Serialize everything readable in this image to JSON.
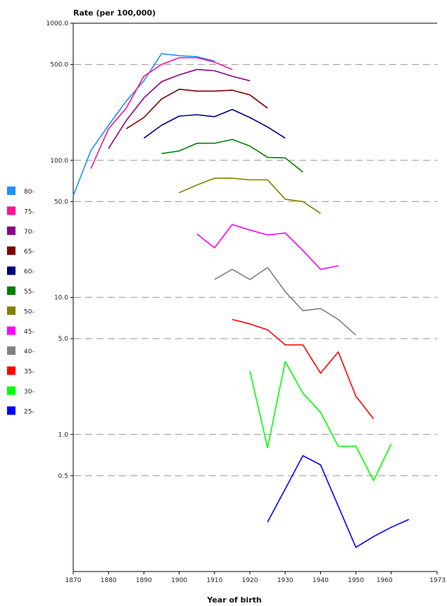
{
  "chart_data": {
    "type": "line",
    "ylabel": "Rate (per 100,000)",
    "xlabel": "Year of birth",
    "y_scale": "log",
    "ylim": [
      0.1,
      1000
    ],
    "xlim": [
      1870,
      1973
    ],
    "grid": "horizontal dashed",
    "legend_position": "left",
    "y_ticks": [
      {
        "value": 1000,
        "label": "1000.0"
      },
      {
        "value": 500,
        "label": "500.0"
      },
      {
        "value": 100,
        "label": "100.0"
      },
      {
        "value": 50,
        "label": "50.0"
      },
      {
        "value": 10,
        "label": "10.0"
      },
      {
        "value": 5,
        "label": "5.0"
      },
      {
        "value": 1,
        "label": "1.0"
      },
      {
        "value": 0.5,
        "label": "0.5"
      }
    ],
    "dashed_grid_values": [
      500,
      100,
      50,
      10,
      5,
      1,
      0.5
    ],
    "x_ticks": [
      {
        "value": 1870,
        "label": "1870"
      },
      {
        "value": 1880,
        "label": "1880"
      },
      {
        "value": 1890,
        "label": "1890"
      },
      {
        "value": 1900,
        "label": "1900"
      },
      {
        "value": 1910,
        "label": "1910"
      },
      {
        "value": 1920,
        "label": "1920"
      },
      {
        "value": 1930,
        "label": "1930"
      },
      {
        "value": 1940,
        "label": "1940"
      },
      {
        "value": 1950,
        "label": "1950"
      },
      {
        "value": 1960,
        "label": "1960"
      },
      {
        "value": 1973,
        "label": "1973"
      }
    ],
    "series": [
      {
        "name": "80-",
        "color": "#1e90ff",
        "points": [
          [
            1870,
            55
          ],
          [
            1875,
            118
          ],
          [
            1880,
            180
          ],
          [
            1885,
            270
          ],
          [
            1890,
            380
          ],
          [
            1895,
            600
          ],
          [
            1900,
            580
          ],
          [
            1905,
            570
          ],
          [
            1910,
            530
          ]
        ]
      },
      {
        "name": "75-",
        "color": "#ff1493",
        "points": [
          [
            1875,
            87
          ],
          [
            1880,
            170
          ],
          [
            1885,
            240
          ],
          [
            1890,
            410
          ],
          [
            1895,
            500
          ],
          [
            1900,
            560
          ],
          [
            1905,
            560
          ],
          [
            1910,
            520
          ],
          [
            1915,
            460
          ]
        ]
      },
      {
        "name": "70-",
        "color": "#8b008b",
        "points": [
          [
            1880,
            122
          ],
          [
            1885,
            195
          ],
          [
            1890,
            285
          ],
          [
            1895,
            375
          ],
          [
            1900,
            420
          ],
          [
            1905,
            460
          ],
          [
            1910,
            450
          ],
          [
            1915,
            410
          ],
          [
            1920,
            380
          ]
        ]
      },
      {
        "name": "65-",
        "color": "#800000",
        "points": [
          [
            1885,
            170
          ],
          [
            1890,
            205
          ],
          [
            1895,
            280
          ],
          [
            1900,
            330
          ],
          [
            1905,
            320
          ],
          [
            1910,
            320
          ],
          [
            1915,
            325
          ],
          [
            1920,
            300
          ],
          [
            1925,
            240
          ]
        ]
      },
      {
        "name": "60-",
        "color": "#000080",
        "points": [
          [
            1890,
            145
          ],
          [
            1895,
            180
          ],
          [
            1900,
            210
          ],
          [
            1905,
            215
          ],
          [
            1910,
            208
          ],
          [
            1915,
            235
          ],
          [
            1920,
            205
          ],
          [
            1925,
            175
          ],
          [
            1930,
            145
          ]
        ]
      },
      {
        "name": "55-",
        "color": "#008000",
        "points": [
          [
            1895,
            112
          ],
          [
            1900,
            117
          ],
          [
            1905,
            133
          ],
          [
            1910,
            133
          ],
          [
            1915,
            142
          ],
          [
            1920,
            127
          ],
          [
            1925,
            105
          ],
          [
            1930,
            104
          ],
          [
            1935,
            82
          ]
        ]
      },
      {
        "name": "50-",
        "color": "#808000",
        "points": [
          [
            1900,
            58
          ],
          [
            1905,
            66
          ],
          [
            1910,
            74
          ],
          [
            1915,
            74
          ],
          [
            1920,
            72
          ],
          [
            1925,
            72
          ],
          [
            1930,
            52
          ],
          [
            1935,
            50
          ],
          [
            1940,
            41
          ]
        ]
      },
      {
        "name": "45-",
        "color": "#ff00ff",
        "points": [
          [
            1905,
            29
          ],
          [
            1910,
            23
          ],
          [
            1915,
            34
          ],
          [
            1920,
            31
          ],
          [
            1925,
            28.5
          ],
          [
            1930,
            29.5
          ],
          [
            1935,
            22
          ],
          [
            1940,
            16
          ],
          [
            1945,
            17
          ]
        ]
      },
      {
        "name": "40-",
        "color": "#808080",
        "points": [
          [
            1910,
            13.5
          ],
          [
            1915,
            16
          ],
          [
            1920,
            13.5
          ],
          [
            1925,
            16.5
          ],
          [
            1930,
            11
          ],
          [
            1935,
            8
          ],
          [
            1940,
            8.3
          ],
          [
            1945,
            6.9
          ],
          [
            1950,
            5.3
          ]
        ]
      },
      {
        "name": "35-",
        "color": "#ff0000",
        "points": [
          [
            1915,
            6.9
          ],
          [
            1920,
            6.4
          ],
          [
            1925,
            5.8
          ],
          [
            1930,
            4.5
          ],
          [
            1935,
            4.5
          ],
          [
            1940,
            2.8
          ],
          [
            1945,
            4
          ],
          [
            1950,
            1.9
          ],
          [
            1955,
            1.3
          ]
        ]
      },
      {
        "name": "30-",
        "color": "#00ff00",
        "points": [
          [
            1920,
            2.9
          ],
          [
            1925,
            0.8
          ],
          [
            1930,
            3.4
          ],
          [
            1935,
            2
          ],
          [
            1940,
            1.45
          ],
          [
            1945,
            0.82
          ],
          [
            1950,
            0.82
          ],
          [
            1955,
            0.46
          ],
          [
            1960,
            0.85
          ]
        ]
      },
      {
        "name": "25-",
        "color": "#0000ff",
        "points": [
          [
            1925,
            0.23
          ],
          [
            1930,
            0.4
          ],
          [
            1935,
            0.7
          ],
          [
            1940,
            0.6
          ],
          [
            1945,
            0.3
          ],
          [
            1950,
            0.15
          ],
          [
            1955,
            0.18
          ],
          [
            1960,
            0.21
          ],
          [
            1965,
            0.24
          ]
        ]
      }
    ]
  }
}
